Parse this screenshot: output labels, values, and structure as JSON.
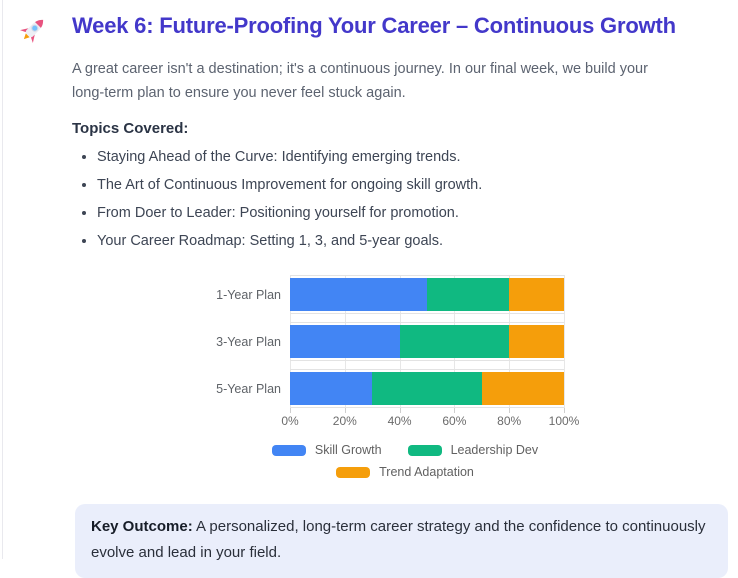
{
  "header": {
    "icon": "rocket-icon",
    "title": "Week 6: Future-Proofing Your Career – Continuous Growth"
  },
  "intro": "A great career isn't a destination; it's a continuous journey. In our final week, we build your\nlong-term plan to ensure you never feel stuck again.",
  "topics": {
    "heading": "Topics Covered:",
    "items": [
      "Staying Ahead of the Curve: Identifying emerging trends.",
      "The Art of Continuous Improvement for ongoing skill growth.",
      "From Doer to Leader: Positioning yourself for promotion.",
      "Your Career Roadmap: Setting 1, 3, and 5-year goals."
    ]
  },
  "chart_data": {
    "type": "bar",
    "orientation": "horizontal",
    "stacked": true,
    "title": "",
    "categories": [
      "1-Year Plan",
      "3-Year Plan",
      "5-Year Plan"
    ],
    "series": [
      {
        "name": "Skill Growth",
        "color": "#4285F4",
        "values": [
          50,
          40,
          30
        ]
      },
      {
        "name": "Leadership Dev",
        "color": "#10B981",
        "values": [
          30,
          40,
          40
        ]
      },
      {
        "name": "Trend Adaptation",
        "color": "#F59E0B",
        "values": [
          20,
          20,
          30
        ]
      }
    ],
    "xlim": [
      0,
      100
    ],
    "x_ticks": [
      "0%",
      "20%",
      "40%",
      "60%",
      "80%",
      "100%"
    ],
    "x_tick_values": [
      0,
      20,
      40,
      60,
      80,
      100
    ],
    "grid": true,
    "legend_position": "bottom"
  },
  "outcome": {
    "label": "Key Outcome:",
    "text": " A personalized, long-term career strategy and the confidence to continuously\nevolve and lead in your field."
  },
  "colors": {
    "title": "#4338CA",
    "outcome_bg": "#EAEEFB",
    "gridline": "#e7e7e7"
  }
}
